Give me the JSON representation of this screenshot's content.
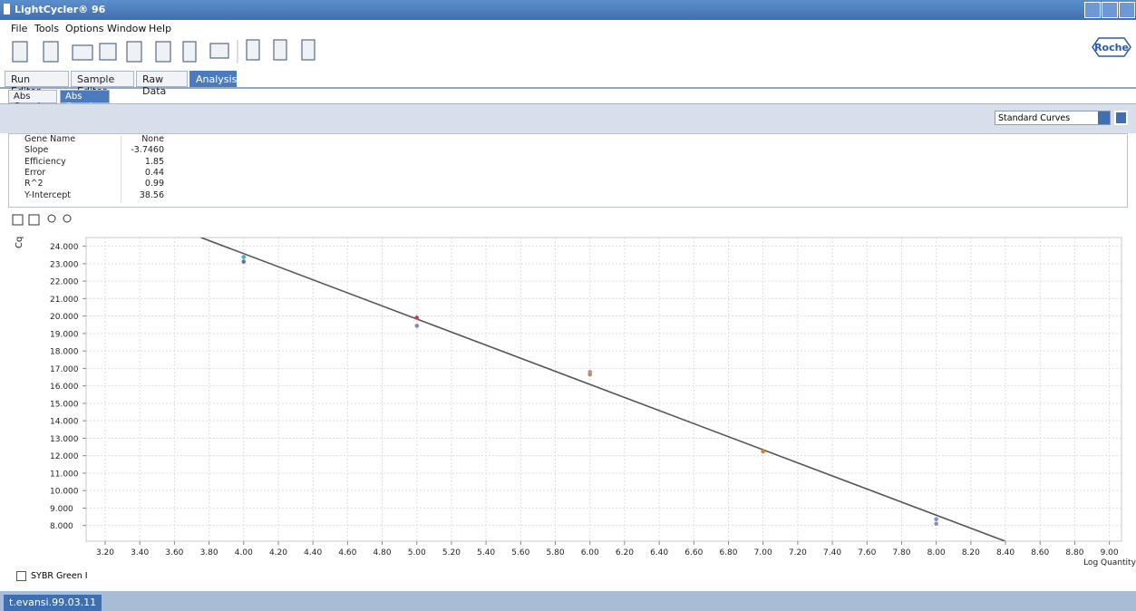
{
  "window": {
    "title": "LightCycler® 96"
  },
  "menu": [
    "File",
    "Tools",
    "Options",
    "Window",
    "Help"
  ],
  "logo": "Roche",
  "tabs": [
    "Run Editor",
    "Sample Editor",
    "Raw Data",
    "Analysis"
  ],
  "subtabs": [
    "Abs Quant",
    "Abs Quant"
  ],
  "view_select": "Standard Curves",
  "stats": {
    "rows": [
      [
        "Gene Name",
        "None"
      ],
      [
        "Slope",
        {
          "value": -3.746,
          "label": "-3.7460"
        }
      ],
      [
        "Efficiency",
        1.85
      ],
      [
        "Error",
        0.44
      ],
      [
        "R^2",
        0.99
      ],
      [
        "Y-Intercept",
        38.56
      ]
    ]
  },
  "chart_data": {
    "type": "scatter",
    "y_label": "Cq",
    "x_label": "Log Quantity",
    "xlim": [
      3.09,
      9.07
    ],
    "ylim": [
      7.1,
      24.5
    ],
    "grid": true,
    "trendline_color": "#555555",
    "xticks": [
      {
        "value": 3.2,
        "label": "3.20"
      },
      {
        "value": 3.4,
        "label": "3.40"
      },
      {
        "value": 3.6,
        "label": "3.60"
      },
      {
        "value": 3.8,
        "label": "3.80"
      },
      {
        "value": 4.0,
        "label": "4.00"
      },
      {
        "value": 4.2,
        "label": "4.20"
      },
      {
        "value": 4.4,
        "label": "4.40"
      },
      {
        "value": 4.6,
        "label": "4.60"
      },
      {
        "value": 4.8,
        "label": "4.80"
      },
      {
        "value": 5.0,
        "label": "5.00"
      },
      {
        "value": 5.2,
        "label": "5.20"
      },
      {
        "value": 5.4,
        "label": "5.40"
      },
      {
        "value": 5.6,
        "label": "5.60"
      },
      {
        "value": 5.8,
        "label": "5.80"
      },
      {
        "value": 6.0,
        "label": "6.00"
      },
      {
        "value": 6.2,
        "label": "6.20"
      },
      {
        "value": 6.4,
        "label": "6.40"
      },
      {
        "value": 6.6,
        "label": "6.60"
      },
      {
        "value": 6.8,
        "label": "6.80"
      },
      {
        "value": 7.0,
        "label": "7.00"
      },
      {
        "value": 7.2,
        "label": "7.20"
      },
      {
        "value": 7.4,
        "label": "7.40"
      },
      {
        "value": 7.6,
        "label": "7.60"
      },
      {
        "value": 7.8,
        "label": "7.80"
      },
      {
        "value": 8.0,
        "label": "8.00"
      },
      {
        "value": 8.2,
        "label": "8.20"
      },
      {
        "value": 8.4,
        "label": "8.40"
      },
      {
        "value": 8.6,
        "label": "8.60"
      },
      {
        "value": 8.8,
        "label": "8.80"
      },
      {
        "value": 9.0,
        "label": "9.00"
      }
    ],
    "yticks": [
      {
        "value": 8,
        "label": "8.000"
      },
      {
        "value": 9,
        "label": "9.000"
      },
      {
        "value": 10,
        "label": "10.000"
      },
      {
        "value": 11,
        "label": "11.000"
      },
      {
        "value": 12,
        "label": "12.000"
      },
      {
        "value": 13,
        "label": "13.000"
      },
      {
        "value": 14,
        "label": "14.000"
      },
      {
        "value": 15,
        "label": "15.000"
      },
      {
        "value": 16,
        "label": "16.000"
      },
      {
        "value": 17,
        "label": "17.000"
      },
      {
        "value": 18,
        "label": "18.000"
      },
      {
        "value": 19,
        "label": "19.000"
      },
      {
        "value": 20,
        "label": "20.000"
      },
      {
        "value": 21,
        "label": "21.000"
      },
      {
        "value": 22,
        "label": "22.000"
      },
      {
        "value": 23,
        "label": "23.000"
      },
      {
        "value": 24,
        "label": "24.000"
      }
    ],
    "series": [
      {
        "name": "SYBR Green I",
        "x": [
          4,
          4,
          5,
          5,
          6,
          6,
          7,
          8,
          8
        ],
        "values": [
          23.38,
          23.12,
          19.91,
          19.44,
          16.8,
          16.65,
          12.24,
          8.36,
          8.1
        ],
        "colors": [
          "#46b4c4",
          "#5a7896",
          "#c8404e",
          "#8c82c4",
          "#c8908c",
          "#a89868",
          "#d88420",
          "#7896d4",
          "#8a94a4"
        ]
      }
    ]
  },
  "status": "t.evansi.99.03.11"
}
